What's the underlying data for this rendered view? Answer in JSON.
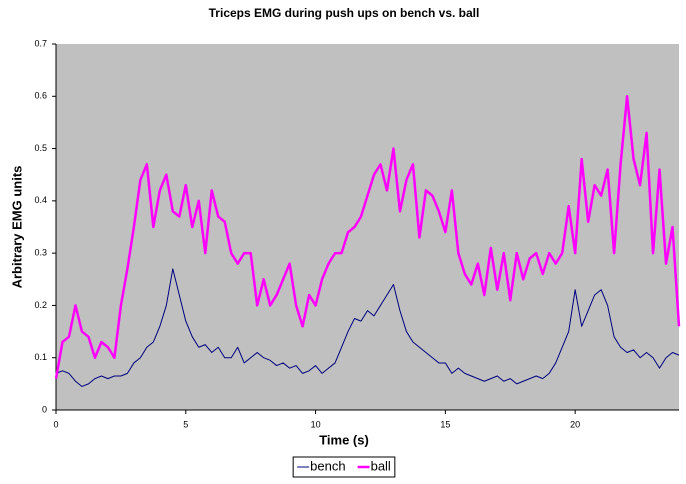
{
  "chart_data": {
    "type": "line",
    "title": "Triceps EMG during push ups on bench vs. ball",
    "x_label": "Time (s)",
    "y_label": "Arbitrary EMG units",
    "xlim": [
      0,
      24
    ],
    "ylim": [
      0,
      0.7
    ],
    "xticks": [
      0,
      5,
      10,
      15,
      20
    ],
    "yticks": [
      0,
      0.1,
      0.2,
      0.3,
      0.4,
      0.5,
      0.6,
      0.7
    ],
    "background": "#c0c0c0",
    "legend": "bottom",
    "x": [
      0,
      0.25,
      0.5,
      0.75,
      1,
      1.25,
      1.5,
      1.75,
      2,
      2.25,
      2.5,
      2.75,
      3,
      3.25,
      3.5,
      3.75,
      4,
      4.25,
      4.5,
      4.75,
      5,
      5.25,
      5.5,
      5.75,
      6,
      6.25,
      6.5,
      6.75,
      7,
      7.25,
      7.5,
      7.75,
      8,
      8.25,
      8.5,
      8.75,
      9,
      9.25,
      9.5,
      9.75,
      10,
      10.25,
      10.5,
      10.75,
      11,
      11.25,
      11.5,
      11.75,
      12,
      12.25,
      12.5,
      12.75,
      13,
      13.25,
      13.5,
      13.75,
      14,
      14.25,
      14.5,
      14.75,
      15,
      15.25,
      15.5,
      15.75,
      16,
      16.25,
      16.5,
      16.75,
      17,
      17.25,
      17.5,
      17.75,
      18,
      18.25,
      18.5,
      18.75,
      19,
      19.25,
      19.5,
      19.75,
      20,
      20.25,
      20.5,
      20.75,
      21,
      21.25,
      21.5,
      21.75,
      22,
      22.25,
      22.5,
      22.75,
      23,
      23.25,
      23.5,
      23.75,
      24
    ],
    "series": [
      {
        "name": "bench",
        "color": "#000080",
        "width": 1,
        "values": [
          0.07,
          0.075,
          0.07,
          0.055,
          0.045,
          0.05,
          0.06,
          0.065,
          0.06,
          0.065,
          0.065,
          0.07,
          0.09,
          0.1,
          0.12,
          0.13,
          0.16,
          0.2,
          0.27,
          0.22,
          0.17,
          0.14,
          0.12,
          0.125,
          0.11,
          0.12,
          0.1,
          0.1,
          0.12,
          0.09,
          0.1,
          0.11,
          0.1,
          0.095,
          0.085,
          0.09,
          0.08,
          0.085,
          0.07,
          0.075,
          0.085,
          0.07,
          0.08,
          0.09,
          0.12,
          0.15,
          0.175,
          0.17,
          0.19,
          0.18,
          0.2,
          0.22,
          0.24,
          0.19,
          0.15,
          0.13,
          0.12,
          0.11,
          0.1,
          0.09,
          0.09,
          0.07,
          0.08,
          0.07,
          0.065,
          0.06,
          0.055,
          0.06,
          0.065,
          0.055,
          0.06,
          0.05,
          0.055,
          0.06,
          0.065,
          0.06,
          0.07,
          0.09,
          0.12,
          0.15,
          0.23,
          0.16,
          0.19,
          0.22,
          0.23,
          0.2,
          0.14,
          0.12,
          0.11,
          0.115,
          0.1,
          0.11,
          0.1,
          0.08,
          0.1,
          0.11,
          0.105
        ]
      },
      {
        "name": "ball",
        "color": "#ff00ff",
        "width": 2.5,
        "values": [
          0.06,
          0.13,
          0.14,
          0.2,
          0.15,
          0.14,
          0.1,
          0.13,
          0.12,
          0.1,
          0.2,
          0.27,
          0.35,
          0.44,
          0.47,
          0.35,
          0.42,
          0.45,
          0.38,
          0.37,
          0.43,
          0.35,
          0.4,
          0.3,
          0.42,
          0.37,
          0.36,
          0.3,
          0.28,
          0.3,
          0.3,
          0.2,
          0.25,
          0.2,
          0.22,
          0.25,
          0.28,
          0.2,
          0.16,
          0.22,
          0.2,
          0.25,
          0.28,
          0.3,
          0.3,
          0.34,
          0.35,
          0.37,
          0.41,
          0.45,
          0.47,
          0.42,
          0.5,
          0.38,
          0.44,
          0.47,
          0.33,
          0.42,
          0.41,
          0.38,
          0.34,
          0.42,
          0.3,
          0.26,
          0.24,
          0.28,
          0.22,
          0.31,
          0.23,
          0.3,
          0.21,
          0.3,
          0.25,
          0.29,
          0.3,
          0.26,
          0.3,
          0.28,
          0.3,
          0.39,
          0.3,
          0.48,
          0.36,
          0.43,
          0.41,
          0.46,
          0.3,
          0.47,
          0.6,
          0.48,
          0.43,
          0.53,
          0.3,
          0.46,
          0.28,
          0.35,
          0.16
        ]
      }
    ]
  }
}
